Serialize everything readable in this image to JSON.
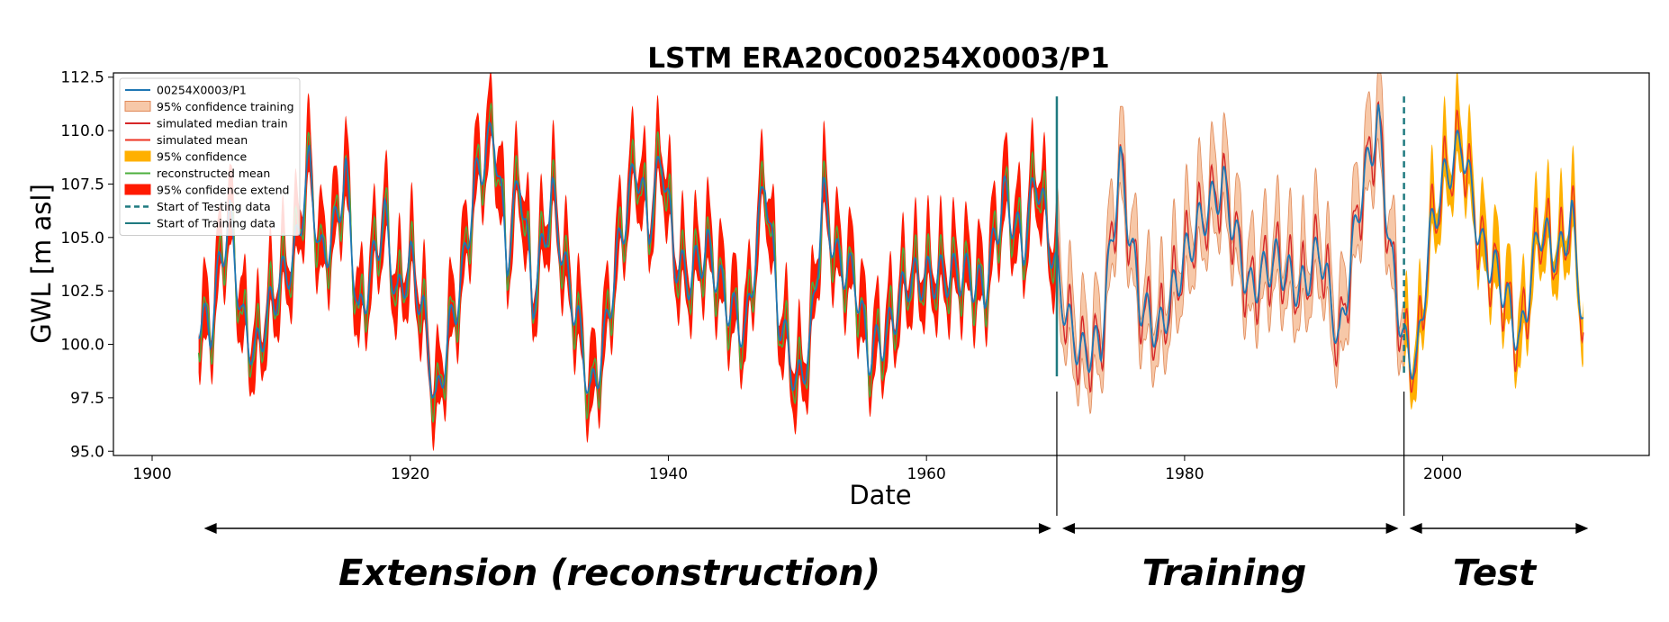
{
  "chart_data": {
    "type": "line",
    "title": "LSTM ERA20C00254X0003/P1",
    "xlabel": "Date",
    "ylabel": "GWL [m asl]",
    "xlim": [
      1897,
      2016
    ],
    "ylim": [
      94.8,
      112.7
    ],
    "x_ticks": [
      1900,
      1920,
      1940,
      1960,
      1980,
      2000
    ],
    "y_ticks": [
      95.0,
      97.5,
      100.0,
      102.5,
      105.0,
      107.5,
      110.0,
      112.5
    ],
    "x_tick_labels": [
      "1900",
      "1920",
      "1940",
      "1960",
      "1980",
      "2000"
    ],
    "y_tick_labels": [
      "95.0",
      "97.5",
      "100.0",
      "102.5",
      "105.0",
      "107.5",
      "110.0",
      "112.5"
    ],
    "grid": false,
    "legend_position": "top-left",
    "legend": [
      {
        "label": "00254X0003/P1",
        "kind": "line",
        "color": "#1f77b4"
      },
      {
        "label": "95% confidence training",
        "kind": "patch",
        "color": "#f7c8a8",
        "edge": "#e08a5a"
      },
      {
        "label": "simulated  median train",
        "kind": "line",
        "color": "#d62728"
      },
      {
        "label": "simulated mean",
        "kind": "line",
        "color": "#ee3322"
      },
      {
        "label": "95% confidence",
        "kind": "patch",
        "color": "#ffb000",
        "edge": "#ffb000"
      },
      {
        "label": "reconstructed mean",
        "kind": "line",
        "color": "#4caf3e"
      },
      {
        "label": "95% confidence extend",
        "kind": "patch",
        "color": "#ff1a00",
        "edge": "#ff1a00"
      },
      {
        "label": "Start of Testing data",
        "kind": "dashed",
        "color": "#1f7a80"
      },
      {
        "label": "Start of Training data",
        "kind": "line",
        "color": "#1f7a80"
      }
    ],
    "start_training_year": 1970.1,
    "start_testing_year": 1997.0,
    "observed_range": [
      1903.6,
      2010.9
    ],
    "extension_range": [
      1903.6,
      1970.1
    ],
    "training_range": [
      1970.1,
      1997.0
    ],
    "test_range": [
      1997.0,
      2010.9
    ],
    "observed_keyframes": [
      [
        1903.6,
        101.3
      ],
      [
        1904.5,
        100.6
      ],
      [
        1905.2,
        103.5
      ],
      [
        1906.0,
        106.0
      ],
      [
        1907.0,
        101.0
      ],
      [
        1908.0,
        99.5
      ],
      [
        1909.0,
        101.5
      ],
      [
        1910.0,
        103.0
      ],
      [
        1911.0,
        104.0
      ],
      [
        1912.2,
        108.5
      ],
      [
        1913.0,
        104.0
      ],
      [
        1914.0,
        105.0
      ],
      [
        1915.0,
        108.0
      ],
      [
        1916.0,
        101.0
      ],
      [
        1917.0,
        103.5
      ],
      [
        1918.0,
        106.0
      ],
      [
        1919.0,
        102.0
      ],
      [
        1920.0,
        104.0
      ],
      [
        1921.0,
        101.5
      ],
      [
        1922.0,
        97.0
      ],
      [
        1923.0,
        100.5
      ],
      [
        1924.0,
        103.0
      ],
      [
        1925.0,
        107.5
      ],
      [
        1926.5,
        110.0
      ],
      [
        1927.5,
        104.0
      ],
      [
        1928.5,
        108.0
      ],
      [
        1929.5,
        102.0
      ],
      [
        1931.0,
        107.0
      ],
      [
        1932.0,
        103.5
      ],
      [
        1933.0,
        101.0
      ],
      [
        1934.0,
        97.5
      ],
      [
        1935.0,
        100.0
      ],
      [
        1936.0,
        104.0
      ],
      [
        1937.5,
        108.5
      ],
      [
        1938.5,
        105.5
      ],
      [
        1939.5,
        109.0
      ],
      [
        1940.5,
        104.0
      ],
      [
        1941.5,
        103.0
      ],
      [
        1943.0,
        104.5
      ],
      [
        1944.5,
        102.0
      ],
      [
        1946.0,
        100.5
      ],
      [
        1947.5,
        108.0
      ],
      [
        1948.5,
        101.5
      ],
      [
        1950.0,
        98.0
      ],
      [
        1951.0,
        100.0
      ],
      [
        1952.0,
        107.0
      ],
      [
        1953.0,
        104.0
      ],
      [
        1954.5,
        103.0
      ],
      [
        1955.5,
        99.5
      ],
      [
        1957.0,
        100.5
      ],
      [
        1958.5,
        103.0
      ],
      [
        1960.0,
        103.1
      ],
      [
        1963.0,
        103.3
      ],
      [
        1964.5,
        102.5
      ],
      [
        1966.0,
        107.0
      ],
      [
        1967.5,
        104.5
      ],
      [
        1968.5,
        108.0
      ],
      [
        1970.0,
        103.5
      ],
      [
        1971.0,
        101.0
      ],
      [
        1972.0,
        99.5
      ],
      [
        1973.5,
        100.0
      ],
      [
        1975.0,
        108.5
      ],
      [
        1976.5,
        102.0
      ],
      [
        1978.0,
        100.5
      ],
      [
        1980.0,
        104.0
      ],
      [
        1981.0,
        105.5
      ],
      [
        1983.0,
        107.5
      ],
      [
        1985.0,
        102.5
      ],
      [
        1987.0,
        104.0
      ],
      [
        1989.0,
        102.5
      ],
      [
        1990.5,
        104.5
      ],
      [
        1992.0,
        100.0
      ],
      [
        1993.5,
        106.5
      ],
      [
        1995.0,
        110.5
      ],
      [
        1996.0,
        104.0
      ],
      [
        1997.0,
        100.0
      ],
      [
        1998.0,
        99.0
      ],
      [
        1999.0,
        105.0
      ],
      [
        2000.0,
        107.5
      ],
      [
        2001.5,
        109.5
      ],
      [
        2003.0,
        104.5
      ],
      [
        2004.5,
        103.0
      ],
      [
        2006.0,
        100.0
      ],
      [
        2007.5,
        105.5
      ],
      [
        2009.0,
        104.0
      ],
      [
        2010.0,
        106.0
      ],
      [
        2010.9,
        101.0
      ]
    ]
  },
  "annotations": {
    "extension": "Extension (reconstruction)",
    "training": "Training",
    "test": "Test"
  },
  "colors": {
    "observed": "#1f77b4",
    "train_band": "#f7c8a8",
    "train_band_edge": "#e08a5a",
    "train_median": "#d62728",
    "sim_mean": "#ee3322",
    "test_band": "#ffb000",
    "recon_mean": "#4caf3e",
    "extend_band": "#ff1a00",
    "boundary": "#1f7a80"
  }
}
